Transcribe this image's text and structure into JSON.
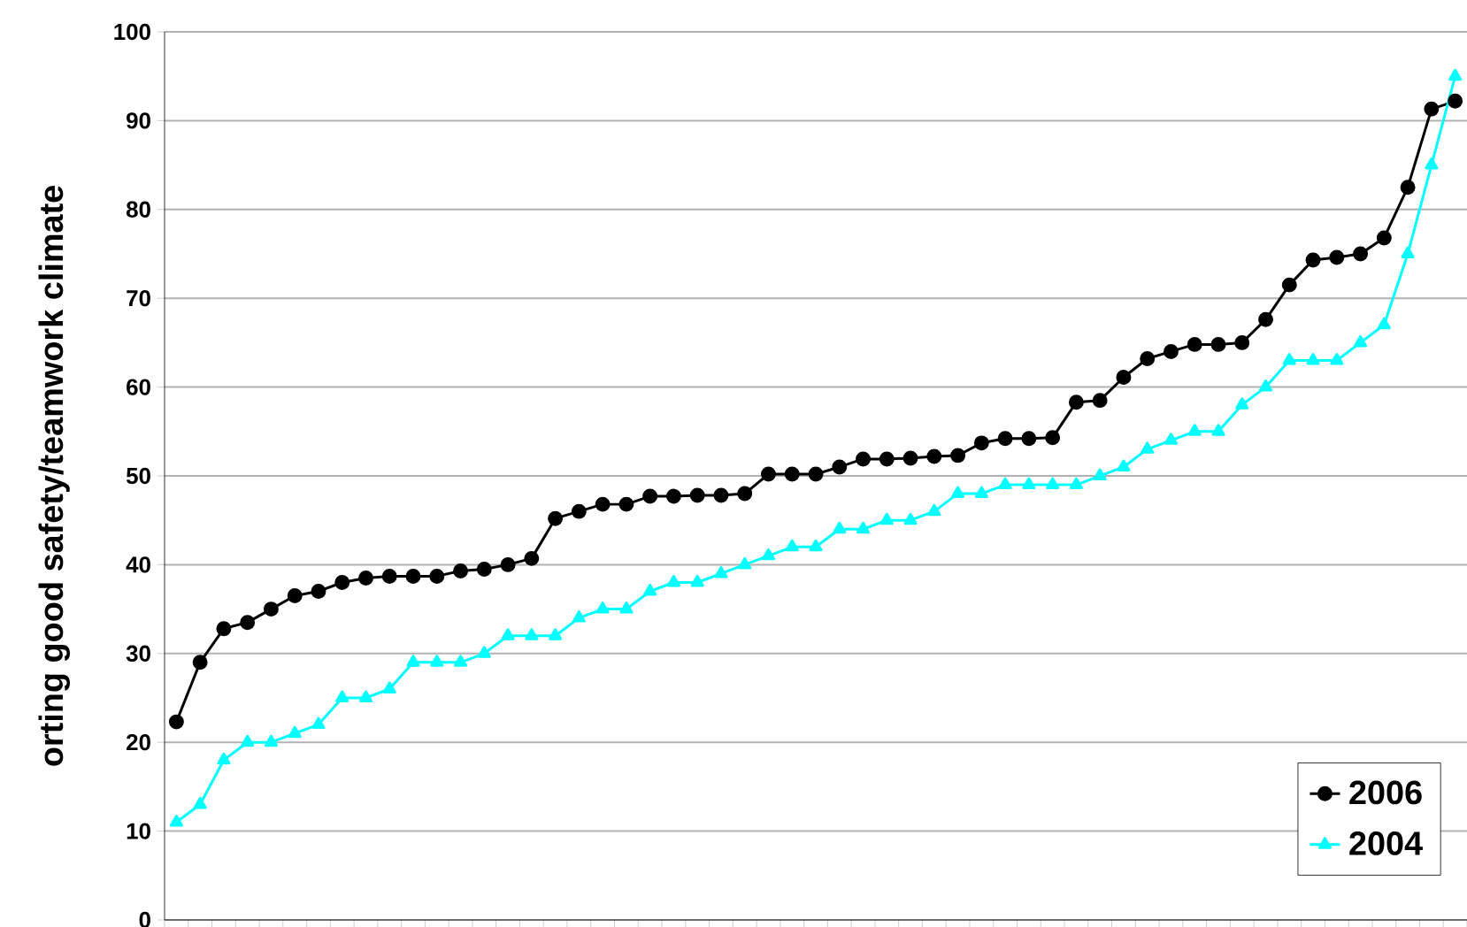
{
  "chart_data": {
    "type": "line",
    "ylabel": "orting good safety/teamwork climate",
    "categories": [
      null,
      null,
      null,
      null,
      null,
      null,
      null,
      null,
      null,
      null,
      null,
      null,
      null,
      null,
      null,
      null,
      null,
      null,
      null,
      null,
      null,
      null,
      null,
      null,
      null,
      null,
      null,
      null,
      null,
      null,
      null,
      null,
      null,
      null,
      null,
      null,
      null,
      null,
      null,
      null,
      null,
      null,
      null,
      null,
      null,
      null,
      null,
      null,
      null,
      null,
      null,
      null,
      null,
      null,
      null
    ],
    "series": [
      {
        "name": "2006",
        "color": "#000000",
        "marker": "circle",
        "values": [
          22.3,
          29,
          32.8,
          33.5,
          35,
          36.5,
          37,
          38,
          38.5,
          38.7,
          38.7,
          38.7,
          39.3,
          39.5,
          40,
          40.7,
          45.2,
          46,
          46.8,
          46.8,
          47.7,
          47.7,
          47.8,
          47.8,
          48,
          50.2,
          50.2,
          50.2,
          51,
          51.9,
          51.9,
          52,
          52.2,
          52.3,
          53.7,
          54.2,
          54.2,
          54.3,
          58.3,
          58.5,
          61.1,
          63.2,
          64,
          64.8,
          64.8,
          65,
          67.6,
          71.5,
          74.3,
          74.6,
          75,
          76.8,
          82.5,
          91.3,
          92.2
        ]
      },
      {
        "name": "2004",
        "color": "#00ffff",
        "marker": "triangle",
        "values": [
          11,
          13,
          18,
          20,
          20,
          21,
          22,
          25,
          25,
          26,
          29,
          29,
          29,
          30,
          32,
          32,
          32,
          34,
          35,
          35,
          37,
          38,
          38,
          39,
          40,
          41,
          42,
          42,
          44,
          44,
          45,
          45,
          46,
          48,
          48,
          49,
          49,
          49,
          49,
          50,
          51,
          53,
          54,
          55,
          55,
          58,
          60,
          63,
          63,
          63,
          65,
          67,
          75,
          85,
          95
        ]
      }
    ],
    "ylim": [
      0,
      100
    ],
    "yticks": [
      0,
      10,
      20,
      30,
      40,
      50,
      60,
      70,
      80,
      90,
      100
    ],
    "grid": "y",
    "legend": "bottom right",
    "line_style": "solid",
    "tick_labels": "y"
  }
}
